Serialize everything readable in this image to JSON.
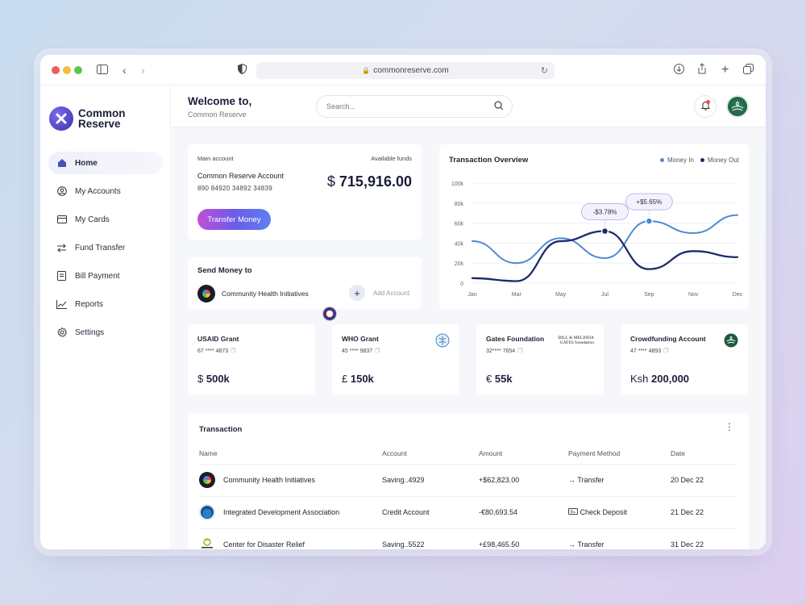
{
  "browser": {
    "url": "commonreserve.com"
  },
  "brand": {
    "name_line1": "Common",
    "name_line2": "Reserve"
  },
  "nav": [
    {
      "label": "Home",
      "icon": "home-icon"
    },
    {
      "label": "My Accounts",
      "icon": "user-circle-icon"
    },
    {
      "label": "My Cards",
      "icon": "card-icon"
    },
    {
      "label": "Fund Transfer",
      "icon": "transfer-icon"
    },
    {
      "label": "Bill Payment",
      "icon": "bill-icon"
    },
    {
      "label": "Reports",
      "icon": "chart-line-icon"
    },
    {
      "label": "Settings",
      "icon": "gear-icon"
    }
  ],
  "header": {
    "welcome": "Welcome to,",
    "subtitle": "Common Reserve",
    "search_placeholder": "Search..."
  },
  "account": {
    "main_label": "Main account",
    "funds_label": "Available funds",
    "name": "Common Reserve Account",
    "number": "890 84920 34892 34839",
    "currency": "$",
    "amount": "715,916.00",
    "transfer_label": "Transfer Money"
  },
  "send": {
    "title": "Send Money to",
    "recipient": "Community Health Initiatives",
    "add_label": "Add Account"
  },
  "chart_data": {
    "type": "line",
    "title": "Transaction Overview",
    "x": [
      "Jan",
      "Mar",
      "May",
      "Jul",
      "Sep",
      "Nov",
      "Dec"
    ],
    "ylim": [
      0,
      100000
    ],
    "yticks": [
      "0",
      "20k",
      "40k",
      "60k",
      "80k",
      "100k"
    ],
    "grid": true,
    "legend_position": "top-right",
    "series": [
      {
        "name": "Money In",
        "color": "#4d8bd0",
        "values": [
          42000,
          20000,
          45000,
          25000,
          62000,
          50000,
          68000
        ]
      },
      {
        "name": "Money Out",
        "color": "#1f2a6b",
        "values": [
          5000,
          2000,
          42000,
          52000,
          14000,
          32000,
          26000
        ]
      }
    ],
    "annotations": [
      {
        "label": "-$3.78%",
        "series": "Money Out",
        "x": "Jul"
      },
      {
        "label": "+$5.65%",
        "series": "Money In",
        "x": "Sep"
      }
    ]
  },
  "grants": [
    {
      "name": "USAID Grant",
      "number": "67 **** 4873",
      "currency": "$",
      "amount": "500k"
    },
    {
      "name": "WHO  Grant",
      "number": "45 **** 9837",
      "currency": "£",
      "amount": "150k"
    },
    {
      "name": "Gates Foundation",
      "number": "32**** 7654",
      "currency": "€",
      "amount": "55k",
      "logo_text": "BILL & MELINDA GATES foundation"
    },
    {
      "name": "Crowdfunding Account",
      "number": "47 **** 4893",
      "currency": "Ksh",
      "amount": "200,000"
    }
  ],
  "transactions": {
    "title": "Transaction",
    "columns": [
      "Name",
      "Account",
      "Amount",
      "Payment Method",
      "Date"
    ],
    "rows": [
      {
        "name": "Community Health Initiatives",
        "account": "Saving..4929",
        "amount": "+$62,823.00",
        "method": "Transfer",
        "method_icon": "arrow-right-icon",
        "date": "20 Dec 22"
      },
      {
        "name": "Integrated Development Association",
        "account": "Credit Account",
        "amount": "-€80,693.54",
        "method": "Check Deposit",
        "method_icon": "check-icon",
        "date": "21 Dec 22"
      },
      {
        "name": "Center for Disaster Relief",
        "account": "Saving..5522",
        "amount": "+£98,465.50",
        "method": "Transfer",
        "method_icon": "arrow-right-icon",
        "date": "31 Dec 22"
      }
    ]
  }
}
